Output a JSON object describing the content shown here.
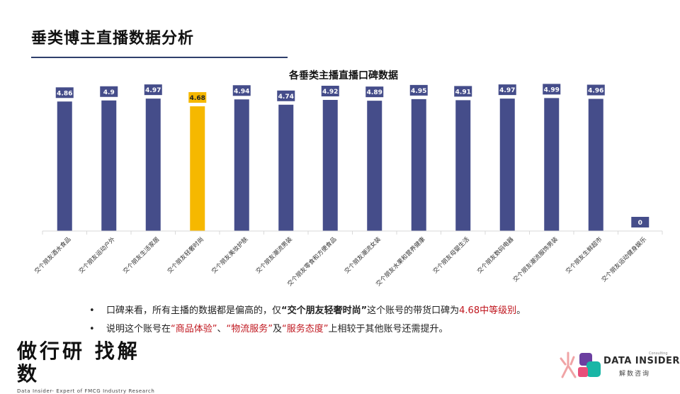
{
  "page": {
    "title": "垂类博主直播数据分析"
  },
  "chart_data": {
    "type": "bar",
    "title": "各垂类主播直播口碑数据",
    "categories": [
      "交个朋友酒水食品",
      "交个朋友运动户外",
      "交个朋友生活家居",
      "交个朋友轻奢时尚",
      "交个朋友美妆护肤",
      "交个朋友潮流男装",
      "交个朋友零食和方便食品",
      "交个朋友潮流女装",
      "交个朋友水果和营养健康",
      "交个朋友母婴生活",
      "交个朋友数码电器",
      "交个朋友潮流服饰男装",
      "交个朋友生鲜超市",
      "交个朋友运动健身娱乐"
    ],
    "values": [
      4.86,
      4.9,
      4.97,
      4.68,
      4.94,
      4.74,
      4.92,
      4.89,
      4.95,
      4.91,
      4.97,
      4.99,
      4.96,
      0
    ],
    "value_labels": [
      "4.86",
      "4.9",
      "4.97",
      "4.68",
      "4.94",
      "4.74",
      "4.92",
      "4.89",
      "4.95",
      "4.91",
      "4.97",
      "4.99",
      "4.96",
      "0"
    ],
    "highlight_index": 3,
    "ylim": [
      0,
      5.0
    ],
    "colors": {
      "bar": "#454d8a",
      "highlight": "#f6b800",
      "axis": "#d9d9d9"
    },
    "grid": false,
    "legend": "none"
  },
  "notes": {
    "bullet_1": {
      "prefix": "口碑来看，所有主播的数据都是偏高的，仅",
      "q_open": "“",
      "highlight": "交个朋友轻奢时尚",
      "q_close": "”",
      "middle": "这个账号的带货口碑为",
      "red": "4.68中等级别",
      "suffix": "。"
    },
    "bullet_2": {
      "prefix": "说明这个账号在",
      "item_1": "“商品体验”",
      "sep_1": "、",
      "item_2": "“物流服务”",
      "sep_2": "及",
      "item_3": "“服务态度”",
      "suffix": "上相较于其他账号还需提升。"
    },
    "bullet_char": "•"
  },
  "logos": {
    "left_main": "做行研 找解数",
    "left_sub": "Data Insider- Expert of FMCG Industry Research",
    "right_main": "DATA INSIDER",
    "right_sub": "解数咨询",
    "right_tiny": "Consulting"
  }
}
